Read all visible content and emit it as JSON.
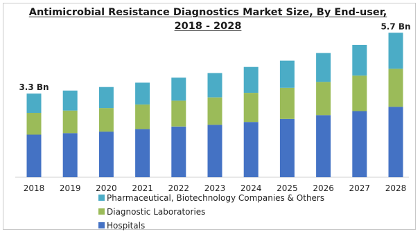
{
  "colors": {
    "hospitals": "#4472c4",
    "diagnostic_laboratories": "#9bbb59",
    "pharma": "#4bacc6"
  },
  "chart_data": {
    "type": "bar",
    "stacked": true,
    "title_line1": "Antimicrobial Resistance Diagnostics Market Size, By End-user,",
    "title_line2": "2018 - 2028",
    "categories": [
      "2018",
      "2019",
      "2020",
      "2021",
      "2022",
      "2023",
      "2024",
      "2025",
      "2026",
      "2027",
      "2028"
    ],
    "series": [
      {
        "name": "Hospitals",
        "values": [
          1.68,
          1.74,
          1.8,
          1.9,
          2.0,
          2.07,
          2.18,
          2.3,
          2.45,
          2.61,
          2.78
        ]
      },
      {
        "name": "Diagnostic Laboratories",
        "values": [
          0.86,
          0.89,
          0.93,
          0.97,
          1.02,
          1.08,
          1.15,
          1.23,
          1.31,
          1.4,
          1.5
        ]
      },
      {
        "name": "Pharmaceutical, Biotechnology Companies & Others",
        "values": [
          0.76,
          0.79,
          0.83,
          0.86,
          0.91,
          0.96,
          1.02,
          1.07,
          1.14,
          1.21,
          1.42
        ]
      }
    ],
    "data_labels": [
      {
        "category": "2018",
        "text": "3.3 Bn"
      },
      {
        "category": "2028",
        "text": "5.7 Bn"
      }
    ],
    "ylim": [
      0,
      5.9
    ],
    "grid": false,
    "legend_placement": "bottom-center"
  }
}
